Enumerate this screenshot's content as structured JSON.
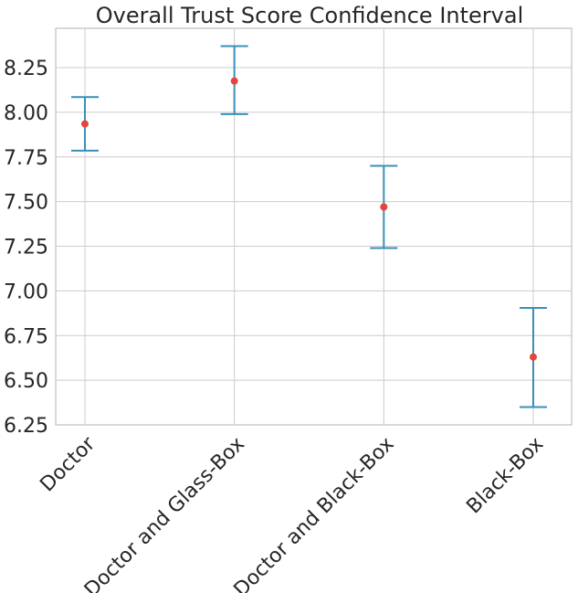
{
  "chart_data": {
    "type": "scatter",
    "title": "Overall Trust Score Confidence Interval",
    "xlabel": "",
    "ylabel": "",
    "categories": [
      "Doctor",
      "Doctor and Glass-Box",
      "Doctor and Black-Box",
      "Black-Box"
    ],
    "series": [
      {
        "mean": [
          7.935,
          8.175,
          7.47,
          6.63
        ],
        "lower": [
          7.785,
          7.99,
          7.24,
          6.35
        ],
        "upper": [
          8.085,
          8.37,
          7.7,
          6.905
        ]
      }
    ],
    "ylim": [
      6.25,
      8.47
    ],
    "yticks": [
      "6.25",
      "6.50",
      "6.75",
      "7.00",
      "7.25",
      "7.50",
      "7.75",
      "8.00",
      "8.25"
    ],
    "grid": true,
    "colors": {
      "errorbar": "#3a8fb7",
      "marker": "#e8433a",
      "grid": "#cccccc"
    }
  }
}
